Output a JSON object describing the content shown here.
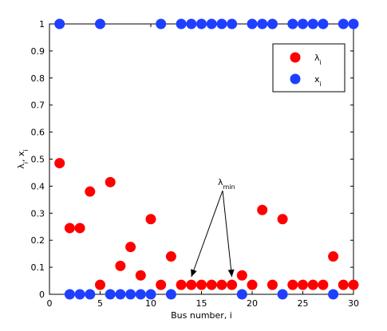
{
  "chart_data": {
    "type": "scatter",
    "title": "",
    "xlabel": "Bus number, i",
    "ylabel": "λ_i, x_i",
    "xlim": [
      0,
      30
    ],
    "ylim": [
      0,
      1
    ],
    "xticks": [
      0,
      5,
      10,
      15,
      20,
      25,
      30
    ],
    "yticks": [
      0,
      0.1,
      0.2,
      0.3,
      0.4,
      0.5,
      0.6,
      0.7,
      0.8,
      0.9,
      1
    ],
    "grid": false,
    "legend_position": "top-right",
    "series": [
      {
        "name": "λ_i",
        "color": "#ff0000",
        "x": [
          1,
          2,
          3,
          4,
          5,
          6,
          7,
          8,
          9,
          10,
          11,
          12,
          13,
          14,
          15,
          16,
          17,
          18,
          19,
          20,
          21,
          22,
          23,
          24,
          25,
          26,
          27,
          28,
          29,
          30
        ],
        "y": [
          0.485,
          0.245,
          0.245,
          0.38,
          0.035,
          0.415,
          0.105,
          0.175,
          0.07,
          0.278,
          0.035,
          0.14,
          0.035,
          0.035,
          0.035,
          0.035,
          0.035,
          0.035,
          0.07,
          0.035,
          0.312,
          0.035,
          0.278,
          0.035,
          0.035,
          0.035,
          0.035,
          0.14,
          0.035,
          0.035
        ]
      },
      {
        "name": "x_i",
        "color": "#1f3fff",
        "x": [
          1,
          2,
          3,
          4,
          5,
          6,
          7,
          8,
          9,
          10,
          11,
          12,
          13,
          14,
          15,
          16,
          17,
          18,
          19,
          20,
          21,
          22,
          23,
          24,
          25,
          26,
          27,
          28,
          29,
          30
        ],
        "y": [
          1,
          0,
          0,
          0,
          1,
          0,
          0,
          0,
          0,
          0,
          1,
          0,
          1,
          1,
          1,
          1,
          1,
          1,
          0,
          1,
          1,
          1,
          0,
          1,
          1,
          1,
          1,
          0,
          1,
          1
        ]
      }
    ],
    "annotation": {
      "label": "λ_min",
      "targets": [
        [
          14,
          0.035
        ],
        [
          18,
          0.035
        ]
      ]
    }
  }
}
